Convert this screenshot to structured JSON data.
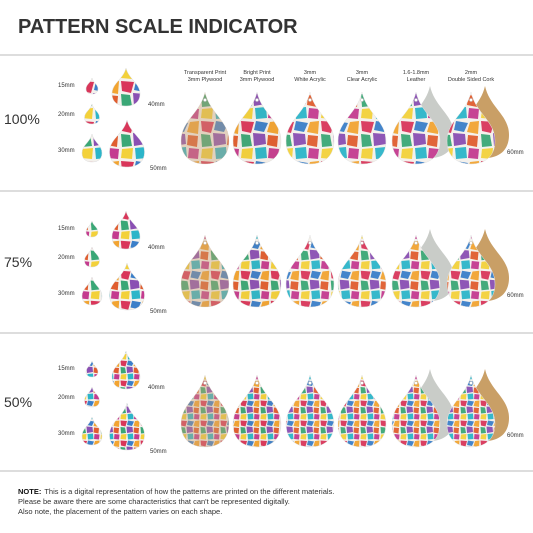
{
  "header": {
    "title": "PATTERN SCALE INDICATOR"
  },
  "materials": [
    [
      "Transparent Print",
      "3mm Plywood"
    ],
    [
      "Bright Print",
      "3mm Plywood"
    ],
    [
      "3mm",
      "White Acrylic"
    ],
    [
      "3mm",
      "Clear Acrylic"
    ],
    [
      "1.6-1.8mm",
      "Leather"
    ],
    [
      "2mm",
      "Double Sided Cork"
    ]
  ],
  "rows": [
    {
      "scale": "100%",
      "sizes": [
        "15mm",
        "20mm",
        "30mm",
        "40mm",
        "50mm"
      ],
      "large": "60mm"
    },
    {
      "scale": "75%",
      "sizes": [
        "15mm",
        "20mm",
        "30mm",
        "40mm",
        "50mm"
      ],
      "large": "60mm"
    },
    {
      "scale": "50%",
      "sizes": [
        "15mm",
        "20mm",
        "30mm",
        "40mm",
        "50mm"
      ],
      "large": "60mm"
    }
  ],
  "note": {
    "label": "NOTE:",
    "lines": [
      "This is a digital representation of how the patterns are printed on the different materials.",
      "Please be aware there are some characteristics that can't be represented digitally.",
      "Also note, the placement of the pattern varies on each shape."
    ]
  }
}
